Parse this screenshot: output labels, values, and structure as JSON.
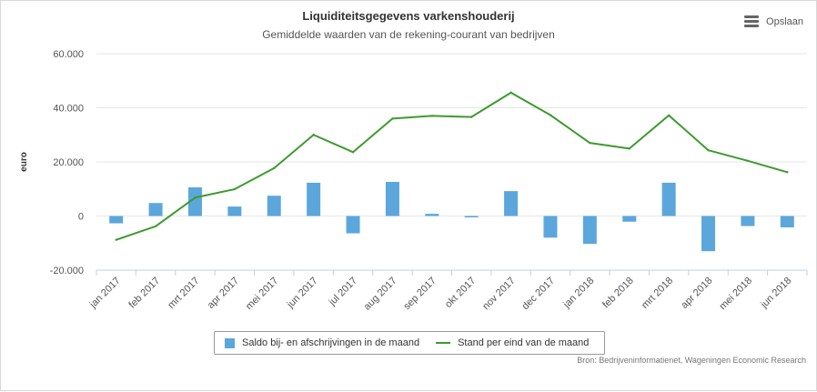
{
  "title": "Liquiditeitsgegevens varkenshouderij",
  "subtitle": "Gemiddelde waarden van de rekening-courant van bedrijven",
  "menu": {
    "label": "Opslaan",
    "icon": "hamburger-menu-icon"
  },
  "source": "Bron: Bedrijveninformatienet, Wageningen Economic Research",
  "colors": {
    "bars": "#5ba7dc",
    "line": "#3d9a2f"
  },
  "chart_data": {
    "type": "bar",
    "title": "Liquiditeitsgegevens varkenshouderij",
    "subtitle": "Gemiddelde waarden van de rekening-courant van bedrijven",
    "xlabel": "",
    "ylabel": "euro",
    "ylim": [
      -20000,
      60000
    ],
    "yticks": [
      -20000,
      0,
      20000,
      40000,
      60000
    ],
    "ytick_labels": [
      "-20.000",
      "0",
      "20.000",
      "40.000",
      "60.000"
    ],
    "grid": true,
    "legend_position": "bottom",
    "categories": [
      "jan 2017",
      "feb 2017",
      "mrt 2017",
      "apr 2017",
      "mei 2017",
      "jun 2017",
      "jul 2017",
      "aug 2017",
      "sep 2017",
      "okt 2017",
      "nov 2017",
      "dec 2017",
      "jan 2018",
      "feb 2018",
      "mrt 2018",
      "apr 2018",
      "mei 2018",
      "jun 2018"
    ],
    "series": [
      {
        "name": "Saldo bij- en afschrijvingen in de maand",
        "type": "bar",
        "values": [
          -2700,
          4800,
          10600,
          3500,
          7500,
          12300,
          -6400,
          12600,
          800,
          -500,
          9200,
          -8000,
          -10300,
          -2100,
          12300,
          -13000,
          -3700,
          -4200
        ]
      },
      {
        "name": "Stand per eind van de maand",
        "type": "line",
        "values": [
          -8800,
          -3800,
          6800,
          9900,
          17700,
          30000,
          23600,
          36000,
          37000,
          36600,
          45600,
          37300,
          27000,
          24900,
          37200,
          24300,
          20400,
          16200
        ]
      }
    ]
  }
}
